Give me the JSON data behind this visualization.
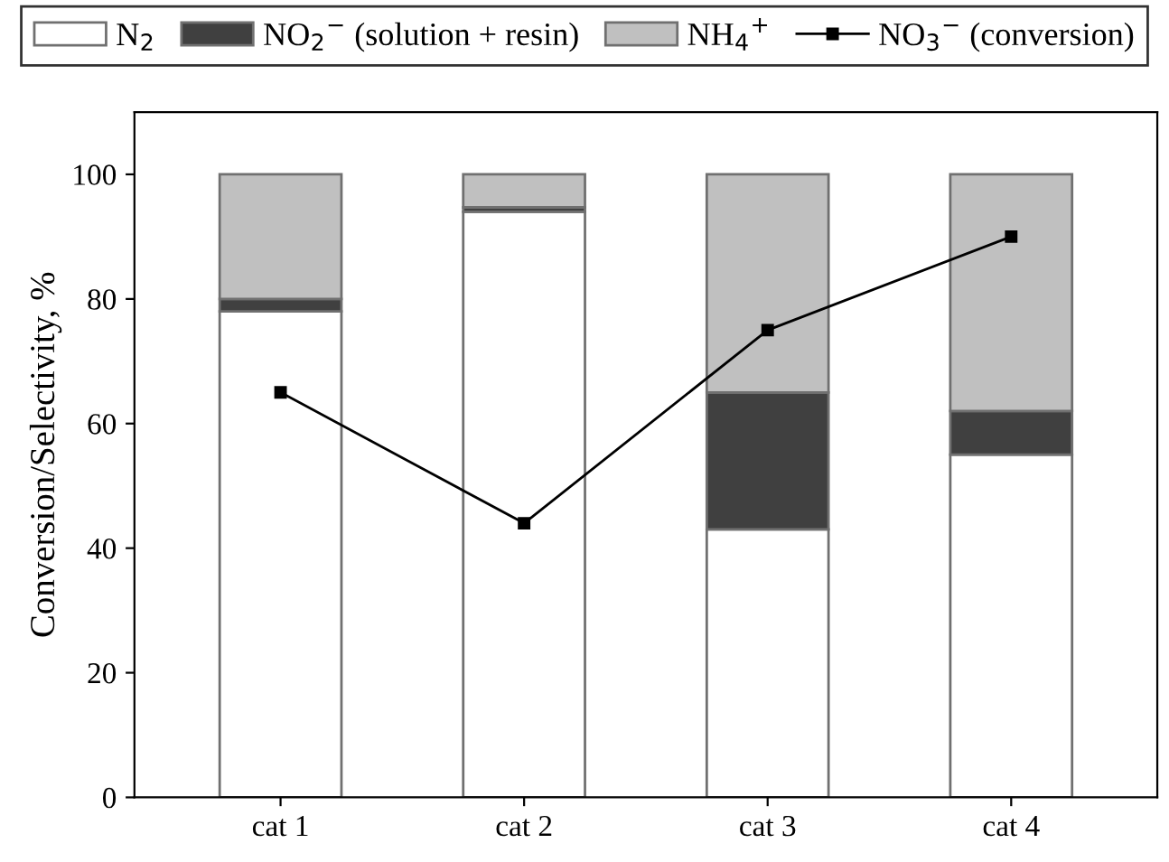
{
  "chart_data": {
    "type": "bar",
    "stacked": true,
    "ylabel": "Conversion/Selectivity, %",
    "categories": [
      "cat 1",
      "cat 2",
      "cat 3",
      "cat 4"
    ],
    "series": [
      {
        "name": "N$_{2}$",
        "color": "#ffffff",
        "values": [
          78,
          94,
          43,
          55
        ]
      },
      {
        "name": "NO$_{2}$$^{−}$ (solution + resin)",
        "color": "#404040",
        "values": [
          2,
          0.7,
          22,
          7
        ]
      },
      {
        "name": "NH$_{4}$$^{+}$",
        "color": "#c0c0c0",
        "values": [
          20,
          5.3,
          35,
          38
        ]
      },
      {
        "name": "NO$_{3}$$^{−}$ (conversion)",
        "type": "line",
        "color": "#000000",
        "values": [
          65,
          44,
          75,
          90
        ],
        "marker": "square"
      }
    ],
    "ylim": [
      0,
      110
    ],
    "yticks": [
      0,
      20,
      40,
      60,
      80,
      100
    ],
    "grid": false,
    "legend": "top"
  }
}
